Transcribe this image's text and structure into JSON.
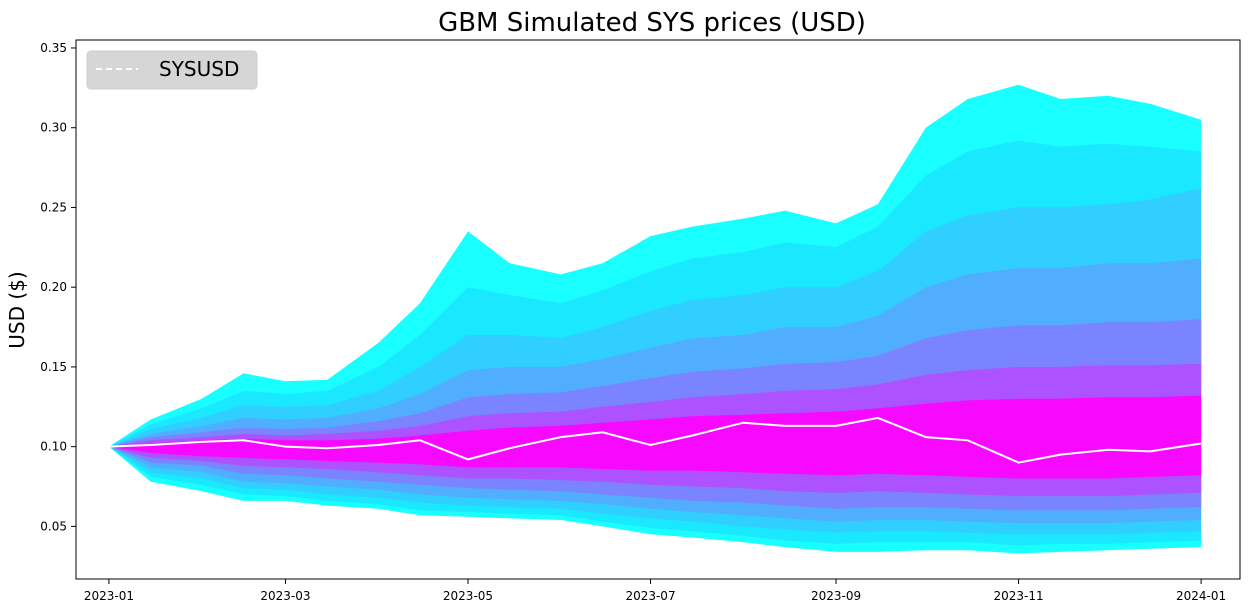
{
  "chart_data": {
    "type": "area",
    "title": "GBM Simulated SYS prices (USD)",
    "xlabel": "",
    "ylabel": "USD ($)",
    "x_ticks": [
      "2023-01",
      "2023-03",
      "2023-05",
      "2023-07",
      "2023-09",
      "2023-11",
      "2024-01"
    ],
    "y_ticks": [
      "0.05",
      "0.10",
      "0.15",
      "0.20",
      "0.25",
      "0.30",
      "0.35"
    ],
    "xlim": [
      "2022-12-21",
      "2024-01-14"
    ],
    "ylim": [
      0.017,
      0.355
    ],
    "legend": {
      "placement": "top-left",
      "entries": [
        "SYSUSD"
      ]
    },
    "grid": false,
    "x": [
      "2023-01-01",
      "2023-01-15",
      "2023-02-01",
      "2023-02-15",
      "2023-03-01",
      "2023-03-15",
      "2023-04-01",
      "2023-04-15",
      "2023-05-01",
      "2023-05-15",
      "2023-06-01",
      "2023-06-15",
      "2023-07-01",
      "2023-07-15",
      "2023-08-01",
      "2023-08-15",
      "2023-09-01",
      "2023-09-15",
      "2023-10-01",
      "2023-10-15",
      "2023-11-01",
      "2023-11-15",
      "2023-12-01",
      "2023-12-15",
      "2024-01-01"
    ],
    "series": [
      {
        "name": "SYSUSD",
        "values": [
          0.1,
          0.101,
          0.103,
          0.104,
          0.1,
          0.099,
          0.101,
          0.104,
          0.092,
          0.099,
          0.106,
          0.109,
          0.101,
          0.107,
          0.115,
          0.113,
          0.113,
          0.118,
          0.106,
          0.104,
          0.09,
          0.095,
          0.098,
          0.097,
          0.102
        ]
      }
    ],
    "bands": [
      {
        "lower": [
          0.1,
          0.078,
          0.072,
          0.066,
          0.066,
          0.063,
          0.061,
          0.057,
          0.056,
          0.055,
          0.054,
          0.05,
          0.045,
          0.043,
          0.04,
          0.037,
          0.034,
          0.034,
          0.035,
          0.035,
          0.033,
          0.034,
          0.035,
          0.036,
          0.037
        ],
        "upper": [
          0.1,
          0.117,
          0.13,
          0.146,
          0.141,
          0.142,
          0.165,
          0.19,
          0.235,
          0.215,
          0.208,
          0.215,
          0.232,
          0.238,
          0.243,
          0.248,
          0.24,
          0.252,
          0.3,
          0.318,
          0.327,
          0.318,
          0.32,
          0.315,
          0.305
        ]
      },
      {
        "lower": [
          0.1,
          0.081,
          0.076,
          0.07,
          0.069,
          0.066,
          0.064,
          0.06,
          0.059,
          0.058,
          0.057,
          0.053,
          0.049,
          0.047,
          0.044,
          0.041,
          0.039,
          0.04,
          0.04,
          0.04,
          0.038,
          0.039,
          0.039,
          0.04,
          0.041
        ],
        "upper": [
          0.1,
          0.114,
          0.124,
          0.135,
          0.133,
          0.135,
          0.15,
          0.17,
          0.2,
          0.195,
          0.19,
          0.198,
          0.21,
          0.218,
          0.222,
          0.228,
          0.225,
          0.238,
          0.27,
          0.285,
          0.292,
          0.288,
          0.29,
          0.288,
          0.285
        ]
      },
      {
        "lower": [
          0.1,
          0.084,
          0.08,
          0.074,
          0.073,
          0.07,
          0.068,
          0.065,
          0.063,
          0.062,
          0.061,
          0.058,
          0.055,
          0.053,
          0.05,
          0.048,
          0.046,
          0.047,
          0.047,
          0.046,
          0.045,
          0.045,
          0.045,
          0.046,
          0.047
        ],
        "upper": [
          0.1,
          0.111,
          0.118,
          0.126,
          0.125,
          0.126,
          0.135,
          0.15,
          0.17,
          0.17,
          0.168,
          0.175,
          0.185,
          0.192,
          0.195,
          0.2,
          0.2,
          0.21,
          0.235,
          0.245,
          0.25,
          0.25,
          0.252,
          0.255,
          0.262
        ]
      },
      {
        "lower": [
          0.1,
          0.087,
          0.084,
          0.078,
          0.077,
          0.075,
          0.073,
          0.07,
          0.068,
          0.067,
          0.066,
          0.064,
          0.061,
          0.059,
          0.057,
          0.055,
          0.053,
          0.054,
          0.054,
          0.053,
          0.052,
          0.052,
          0.052,
          0.053,
          0.054
        ],
        "upper": [
          0.1,
          0.108,
          0.113,
          0.118,
          0.117,
          0.118,
          0.124,
          0.133,
          0.148,
          0.15,
          0.15,
          0.155,
          0.162,
          0.168,
          0.17,
          0.175,
          0.175,
          0.182,
          0.2,
          0.208,
          0.212,
          0.212,
          0.215,
          0.215,
          0.218
        ]
      },
      {
        "lower": [
          0.1,
          0.09,
          0.088,
          0.083,
          0.082,
          0.08,
          0.078,
          0.076,
          0.074,
          0.073,
          0.072,
          0.07,
          0.068,
          0.066,
          0.065,
          0.063,
          0.061,
          0.062,
          0.062,
          0.061,
          0.06,
          0.06,
          0.06,
          0.061,
          0.062
        ],
        "upper": [
          0.1,
          0.106,
          0.109,
          0.112,
          0.111,
          0.112,
          0.116,
          0.121,
          0.131,
          0.133,
          0.134,
          0.138,
          0.143,
          0.147,
          0.149,
          0.152,
          0.153,
          0.157,
          0.168,
          0.173,
          0.176,
          0.176,
          0.178,
          0.178,
          0.18
        ]
      },
      {
        "lower": [
          0.1,
          0.093,
          0.091,
          0.088,
          0.087,
          0.086,
          0.084,
          0.082,
          0.08,
          0.08,
          0.079,
          0.078,
          0.076,
          0.075,
          0.074,
          0.072,
          0.071,
          0.072,
          0.071,
          0.07,
          0.069,
          0.069,
          0.069,
          0.07,
          0.071
        ],
        "upper": [
          0.1,
          0.104,
          0.106,
          0.108,
          0.107,
          0.108,
          0.11,
          0.113,
          0.119,
          0.121,
          0.122,
          0.125,
          0.128,
          0.131,
          0.133,
          0.135,
          0.136,
          0.139,
          0.145,
          0.148,
          0.15,
          0.15,
          0.151,
          0.151,
          0.152
        ]
      },
      {
        "lower": [
          0.1,
          0.096,
          0.094,
          0.093,
          0.092,
          0.091,
          0.09,
          0.089,
          0.087,
          0.087,
          0.087,
          0.086,
          0.085,
          0.085,
          0.084,
          0.083,
          0.082,
          0.083,
          0.082,
          0.081,
          0.08,
          0.08,
          0.08,
          0.081,
          0.082
        ],
        "upper": [
          0.1,
          0.102,
          0.104,
          0.105,
          0.104,
          0.104,
          0.105,
          0.107,
          0.11,
          0.112,
          0.113,
          0.115,
          0.117,
          0.119,
          0.12,
          0.121,
          0.122,
          0.124,
          0.127,
          0.129,
          0.13,
          0.13,
          0.131,
          0.131,
          0.132
        ]
      }
    ],
    "band_colors": [
      "#00ffff",
      "#1ae5ff",
      "#33ccff",
      "#55aaff",
      "#7f80ff",
      "#b34cff",
      "#ff00ff"
    ],
    "line_color": "#ffffff",
    "legend_bg": "#d6d6d6"
  }
}
